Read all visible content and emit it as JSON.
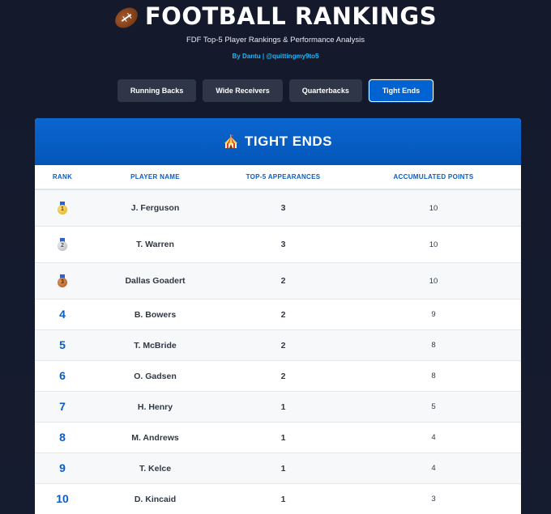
{
  "header": {
    "title": "FOOTBALL RANKINGS",
    "title_icon": "american-football-icon",
    "subtitle": "FDF Top-5 Player Rankings & Performance Analysis",
    "byline": "By Dantu | @quittingmy9to5"
  },
  "tabs": [
    {
      "label": "Running Backs",
      "active": false
    },
    {
      "label": "Wide Receivers",
      "active": false
    },
    {
      "label": "Quarterbacks",
      "active": false
    },
    {
      "label": "Tight Ends",
      "active": true
    }
  ],
  "card": {
    "title": "TIGHT ENDS",
    "title_icon": "circus-tent-icon"
  },
  "table": {
    "columns": [
      "RANK",
      "PLAYER NAME",
      "TOP-5 APPEARANCES",
      "ACCUMULATED POINTS"
    ],
    "rows": [
      {
        "rank": "1",
        "medal": "gold",
        "name": "J. Ferguson",
        "appearances": "3",
        "points": "10"
      },
      {
        "rank": "2",
        "medal": "silver",
        "name": "T. Warren",
        "appearances": "3",
        "points": "10"
      },
      {
        "rank": "3",
        "medal": "bronze",
        "name": "Dallas Goadert",
        "appearances": "2",
        "points": "10"
      },
      {
        "rank": "4",
        "medal": "",
        "name": "B. Bowers",
        "appearances": "2",
        "points": "9"
      },
      {
        "rank": "5",
        "medal": "",
        "name": "T. McBride",
        "appearances": "2",
        "points": "8"
      },
      {
        "rank": "6",
        "medal": "",
        "name": "O. Gadsen",
        "appearances": "2",
        "points": "8"
      },
      {
        "rank": "7",
        "medal": "",
        "name": "H. Henry",
        "appearances": "1",
        "points": "5"
      },
      {
        "rank": "8",
        "medal": "",
        "name": "M. Andrews",
        "appearances": "1",
        "points": "4"
      },
      {
        "rank": "9",
        "medal": "",
        "name": "T. Kelce",
        "appearances": "1",
        "points": "4"
      },
      {
        "rank": "10",
        "medal": "",
        "name": "D. Kincaid",
        "appearances": "1",
        "points": "3"
      }
    ]
  },
  "colors": {
    "background": "#151b2e",
    "accent": "#0063d1",
    "byline": "#18b8ff",
    "rank_text": "#0b5cc0"
  }
}
